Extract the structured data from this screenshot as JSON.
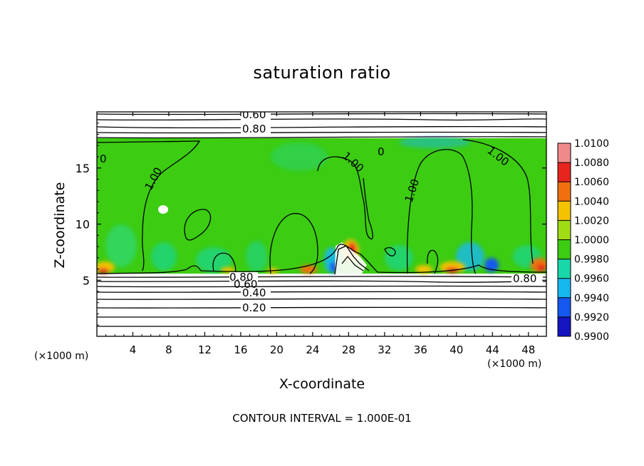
{
  "chart_data": {
    "type": "heatmap",
    "title": "saturation ratio",
    "xlabel": "X-coordinate",
    "ylabel": "Z-coordinate",
    "x_unit_label": "(×1000 m)",
    "y_unit_label": "(×1000 m)",
    "xlim": [
      0,
      50
    ],
    "ylim": [
      0,
      20
    ],
    "x_ticks": [
      4,
      8,
      12,
      16,
      20,
      24,
      28,
      32,
      36,
      40,
      44,
      48
    ],
    "y_ticks": [
      5,
      10,
      15
    ],
    "footer": "CONTOUR INTERVAL = 1.000E-01",
    "colorbar": {
      "labels": [
        "1.0100",
        "1.0080",
        "1.0060",
        "1.0040",
        "1.0020",
        "1.0000",
        "0.9980",
        "0.9960",
        "0.9940",
        "0.9920",
        "0.9900"
      ],
      "colors": [
        "#f08a8a",
        "#e8241f",
        "#f07010",
        "#f5c200",
        "#a0dc14",
        "#3ccc12",
        "#18d7a8",
        "#16b8f0",
        "#1458f0",
        "#1414c0",
        "#5a18a0"
      ]
    },
    "contour_labels": [
      "0.60",
      "0.80",
      "0.80",
      "0.60",
      "0.40",
      "0.20",
      "0.80",
      "1.00",
      "1.00",
      "1.00",
      "1.00",
      "0"
    ]
  }
}
